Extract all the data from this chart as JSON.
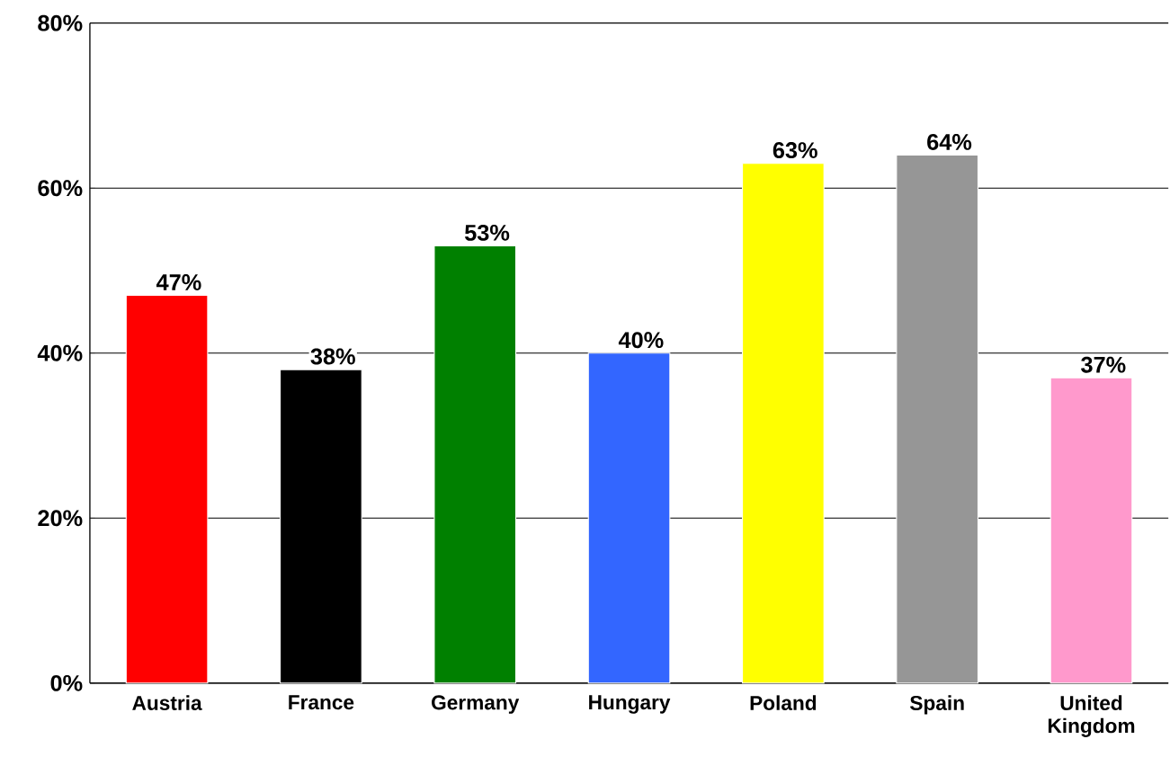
{
  "chart_data": {
    "type": "bar",
    "categories": [
      "Austria",
      "France",
      "Germany",
      "Hungary",
      "Poland",
      "Spain",
      "United Kingdom"
    ],
    "values": [
      47,
      38,
      53,
      40,
      63,
      64,
      37
    ],
    "value_labels": [
      "47%",
      "38%",
      "53%",
      "40%",
      "63%",
      "64%",
      "37%"
    ],
    "colors": [
      "#ff0000",
      "#000000",
      "#008000",
      "#3366ff",
      "#ffff00",
      "#969696",
      "#ff99cc"
    ],
    "ylim": [
      0,
      80
    ],
    "yticks": [
      {
        "value": 0,
        "label": "0%"
      },
      {
        "value": 20,
        "label": "20%"
      },
      {
        "value": 40,
        "label": "40%"
      },
      {
        "value": 60,
        "label": "60%"
      },
      {
        "value": 80,
        "label": "80%"
      }
    ],
    "grid": "y"
  }
}
